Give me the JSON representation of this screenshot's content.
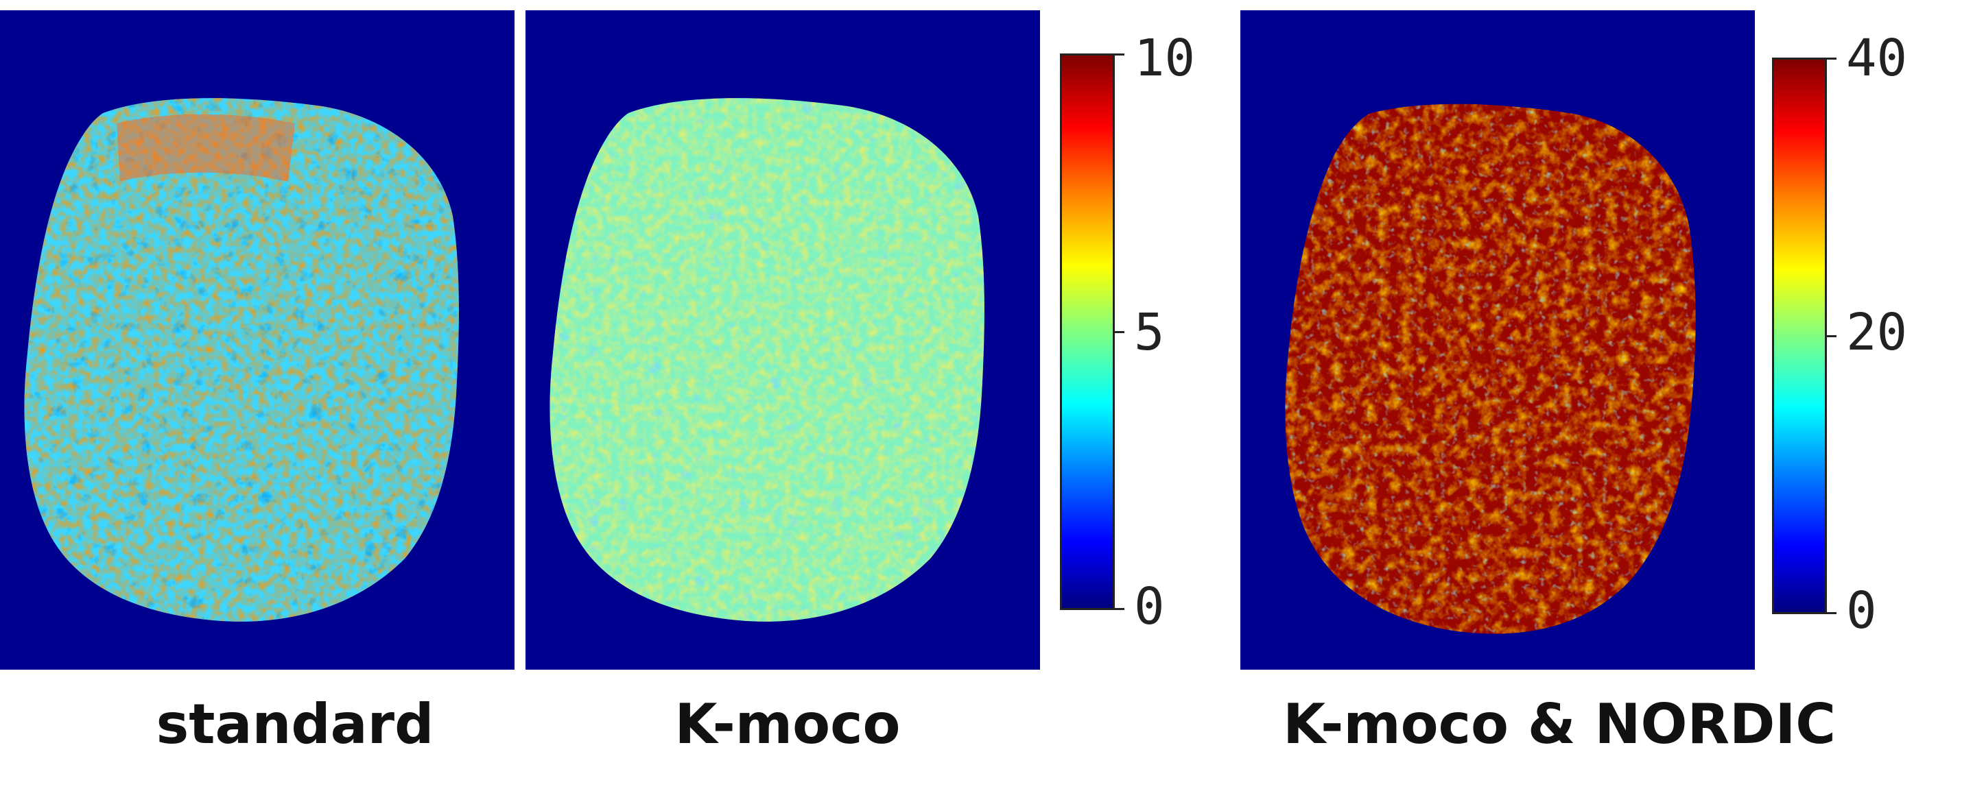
{
  "panels": [
    {
      "id": "standard",
      "caption": "standard",
      "colormap": "jet"
    },
    {
      "id": "kmoco",
      "caption": "K-moco",
      "colormap": "jet"
    },
    {
      "id": "nordic",
      "caption": "K-moco & NORDIC",
      "colormap": "jet"
    }
  ],
  "colorbars": [
    {
      "ticks": [
        "10",
        "5",
        "0"
      ],
      "range": [
        0,
        10
      ]
    },
    {
      "ticks": [
        "40",
        "20",
        "0"
      ],
      "range": [
        0,
        40
      ]
    }
  ],
  "colors": {
    "background_map": "#00008f",
    "low": "#00007f",
    "high": "#7f0000"
  }
}
